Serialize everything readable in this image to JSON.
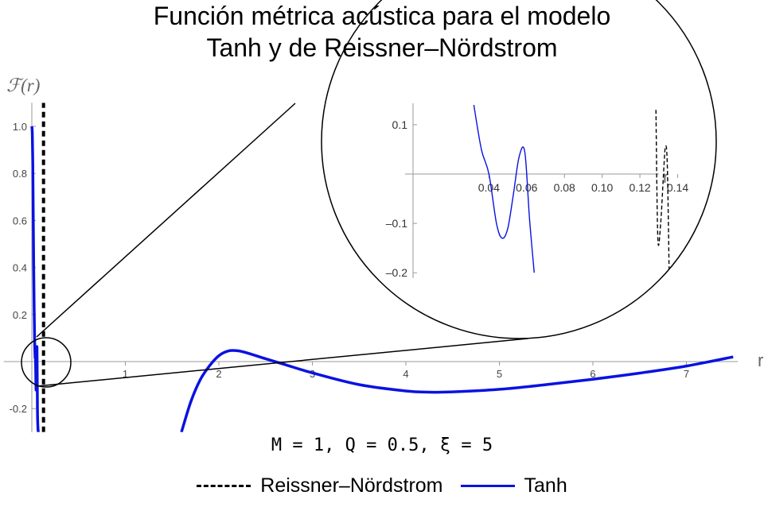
{
  "title_line1": "Función métrica acústica para el modelo",
  "title_line2": "Tanh y de Reissner–Nördstrom",
  "params_text": "M = 1, Q = 0.5, ξ = 5",
  "chart_data": {
    "type": "line",
    "title": "Función métrica acústica para el modelo Tanh y de Reissner–Nördstrom",
    "xlabel": "r",
    "ylabel": "ℱ(r)",
    "xlim": [
      -0.3,
      7.55
    ],
    "ylim": [
      -0.3,
      1.1
    ],
    "xticks": [
      1,
      2,
      3,
      4,
      5,
      6,
      7
    ],
    "yticks": [
      -0.2,
      0.2,
      0.4,
      0.6,
      0.8,
      1.0
    ],
    "ytick_labels": [
      "-0.2",
      "0.2",
      "0.4",
      "0.6",
      "0.8",
      "1.0"
    ],
    "legend": {
      "position": "bottom",
      "entries": [
        "Reissner–Nördstrom",
        "Tanh"
      ]
    },
    "series": [
      {
        "name": "Tanh",
        "color": "#0a12e0",
        "style": "solid",
        "x": [
          1.6,
          1.7,
          1.8,
          1.9,
          2.0,
          2.1,
          2.2,
          2.3,
          2.5,
          2.7,
          3.0,
          3.5,
          4.0,
          4.25,
          4.5,
          5.0,
          5.5,
          6.0,
          6.5,
          7.0,
          7.5
        ],
        "y": [
          -0.3,
          -0.171,
          -0.078,
          -0.018,
          0.025,
          0.045,
          0.046,
          0.037,
          0.012,
          -0.012,
          -0.048,
          -0.098,
          -0.125,
          -0.13,
          -0.129,
          -0.118,
          -0.098,
          -0.075,
          -0.049,
          -0.019,
          0.02
        ]
      },
      {
        "name": "Tanh",
        "color": "#0a12e0",
        "style": "solid",
        "x": [
          0.0,
          0.005,
          0.01,
          0.015,
          0.02,
          0.025,
          0.03,
          0.035,
          0.04,
          0.045,
          0.05,
          0.055,
          0.06,
          0.065,
          0.07
        ],
        "y": [
          1.0,
          0.97,
          0.85,
          0.62,
          0.4,
          0.22,
          0.09,
          0.02,
          0.0,
          -0.12,
          -0.05,
          0.06,
          -0.2,
          -0.28,
          -0.3
        ]
      },
      {
        "name": "Reissner–Nördstrom",
        "color": "#000000",
        "style": "dashed",
        "x": [
          0.125,
          0.125,
          0.125
        ],
        "y": [
          -0.3,
          0.4,
          1.1
        ]
      }
    ],
    "inset": {
      "xlabel": "r",
      "xlim": [
        0.0,
        0.14
      ],
      "ylim": [
        -0.2,
        0.13
      ],
      "xticks": [
        0.04,
        0.06,
        0.08,
        0.1,
        0.12,
        0.14
      ],
      "xtick_labels": [
        "0.04",
        "0.06",
        "0.08",
        "0.10",
        "0.12",
        "0.14"
      ],
      "yticks": [
        0.1,
        -0.1,
        -0.2
      ],
      "ytick_labels": [
        "0.1",
        "–0.1",
        "–0.2"
      ],
      "series": [
        {
          "name": "Tanh",
          "color": "#0a12e0",
          "style": "solid",
          "x": [
            0.032,
            0.036,
            0.04,
            0.044,
            0.047,
            0.05,
            0.053,
            0.056,
            0.059,
            0.0615,
            0.064
          ],
          "y": [
            0.14,
            0.05,
            0.0,
            -0.1,
            -0.13,
            -0.11,
            -0.04,
            0.035,
            0.045,
            -0.09,
            -0.2
          ]
        },
        {
          "name": "Reissner–Nördstrom",
          "color": "#000000",
          "style": "dashed",
          "x": [
            0.1285,
            0.1295,
            0.131,
            0.1325,
            0.1335,
            0.1345,
            0.1355
          ],
          "y": [
            0.13,
            -0.13,
            -0.1,
            0.0,
            0.055,
            0.02,
            -0.2
          ]
        }
      ]
    }
  }
}
